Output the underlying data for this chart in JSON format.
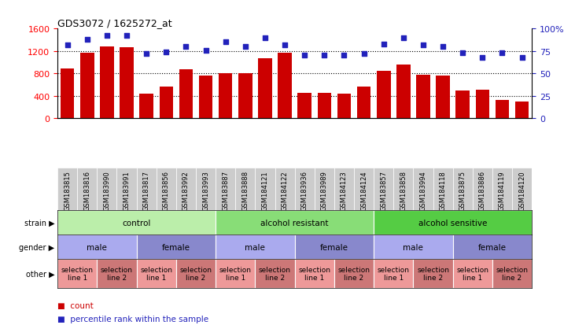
{
  "title": "GDS3072 / 1625272_at",
  "samples": [
    "GSM183815",
    "GSM183816",
    "GSM183990",
    "GSM183991",
    "GSM183817",
    "GSM183856",
    "GSM183992",
    "GSM183993",
    "GSM183887",
    "GSM183888",
    "GSM184121",
    "GSM184122",
    "GSM183936",
    "GSM183989",
    "GSM184123",
    "GSM184124",
    "GSM183857",
    "GSM183858",
    "GSM183994",
    "GSM184118",
    "GSM183875",
    "GSM183886",
    "GSM184119",
    "GSM184120"
  ],
  "bar_values": [
    880,
    1165,
    1280,
    1270,
    430,
    560,
    870,
    760,
    800,
    800,
    1065,
    1165,
    455,
    450,
    430,
    560,
    850,
    960,
    770,
    760,
    490,
    510,
    330,
    300
  ],
  "percentile_values": [
    82,
    88,
    92,
    92,
    72,
    74,
    80,
    76,
    85,
    80,
    90,
    82,
    70,
    70,
    70,
    72,
    83,
    90,
    82,
    80,
    73,
    68,
    73,
    68
  ],
  "bar_color": "#cc0000",
  "dot_color": "#2222bb",
  "ylim_left": [
    0,
    1600
  ],
  "ylim_right": [
    0,
    100
  ],
  "yticks_left": [
    0,
    400,
    800,
    1200,
    1600
  ],
  "yticks_right": [
    0,
    25,
    50,
    75,
    100
  ],
  "gridline_values": [
    400,
    800,
    1200
  ],
  "strain_groups": [
    {
      "label": "control",
      "start": 0,
      "end": 8,
      "color": "#bbeeaa"
    },
    {
      "label": "alcohol resistant",
      "start": 8,
      "end": 16,
      "color": "#88dd77"
    },
    {
      "label": "alcohol sensitive",
      "start": 16,
      "end": 24,
      "color": "#55cc44"
    }
  ],
  "gender_groups": [
    {
      "label": "male",
      "start": 0,
      "end": 4,
      "color": "#aaaaee"
    },
    {
      "label": "female",
      "start": 4,
      "end": 8,
      "color": "#8888cc"
    },
    {
      "label": "male",
      "start": 8,
      "end": 12,
      "color": "#aaaaee"
    },
    {
      "label": "female",
      "start": 12,
      "end": 16,
      "color": "#8888cc"
    },
    {
      "label": "male",
      "start": 16,
      "end": 20,
      "color": "#aaaaee"
    },
    {
      "label": "female",
      "start": 20,
      "end": 24,
      "color": "#8888cc"
    }
  ],
  "other_groups": [
    {
      "label": "selection\nline 1",
      "start": 0,
      "end": 2,
      "color": "#ee9999"
    },
    {
      "label": "selection\nline 2",
      "start": 2,
      "end": 4,
      "color": "#cc7777"
    },
    {
      "label": "selection\nline 1",
      "start": 4,
      "end": 6,
      "color": "#ee9999"
    },
    {
      "label": "selection\nline 2",
      "start": 6,
      "end": 8,
      "color": "#cc7777"
    },
    {
      "label": "selection\nline 1",
      "start": 8,
      "end": 10,
      "color": "#ee9999"
    },
    {
      "label": "selection\nline 2",
      "start": 10,
      "end": 12,
      "color": "#cc7777"
    },
    {
      "label": "selection\nline 1",
      "start": 12,
      "end": 14,
      "color": "#ee9999"
    },
    {
      "label": "selection\nline 2",
      "start": 14,
      "end": 16,
      "color": "#cc7777"
    },
    {
      "label": "selection\nline 1",
      "start": 16,
      "end": 18,
      "color": "#ee9999"
    },
    {
      "label": "selection\nline 2",
      "start": 18,
      "end": 20,
      "color": "#cc7777"
    },
    {
      "label": "selection\nline 1",
      "start": 20,
      "end": 22,
      "color": "#ee9999"
    },
    {
      "label": "selection\nline 2",
      "start": 22,
      "end": 24,
      "color": "#cc7777"
    }
  ],
  "row_labels": [
    "strain",
    "gender",
    "other"
  ],
  "xtick_bg_color": "#cccccc",
  "legend_items": [
    {
      "label": "count",
      "color": "#cc0000"
    },
    {
      "label": "percentile rank within the sample",
      "color": "#2222bb"
    }
  ]
}
